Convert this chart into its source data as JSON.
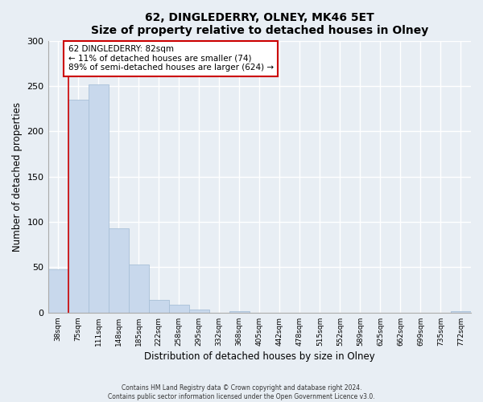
{
  "title": "62, DINGLEDERRY, OLNEY, MK46 5ET",
  "subtitle": "Size of property relative to detached houses in Olney",
  "xlabel": "Distribution of detached houses by size in Olney",
  "ylabel": "Number of detached properties",
  "bar_labels": [
    "38sqm",
    "75sqm",
    "111sqm",
    "148sqm",
    "185sqm",
    "222sqm",
    "258sqm",
    "295sqm",
    "332sqm",
    "368sqm",
    "405sqm",
    "442sqm",
    "478sqm",
    "515sqm",
    "552sqm",
    "589sqm",
    "625sqm",
    "662sqm",
    "699sqm",
    "735sqm",
    "772sqm"
  ],
  "bar_values": [
    48,
    235,
    252,
    93,
    53,
    14,
    9,
    3,
    0,
    2,
    0,
    0,
    0,
    0,
    0,
    0,
    0,
    0,
    0,
    0,
    2
  ],
  "bar_color": "#c8d8ec",
  "bar_edge_color": "#a8c0d8",
  "ylim": [
    0,
    300
  ],
  "yticks": [
    0,
    50,
    100,
    150,
    200,
    250,
    300
  ],
  "annotation_box_text_line1": "62 DINGLEDERRY: 82sqm",
  "annotation_box_text_line2": "← 11% of detached houses are smaller (74)",
  "annotation_box_text_line3": "89% of semi-detached houses are larger (624) →",
  "annotation_box_facecolor": "#ffffff",
  "annotation_box_edgecolor": "#cc0000",
  "redline_x": 0.5,
  "footer_line1": "Contains HM Land Registry data © Crown copyright and database right 2024.",
  "footer_line2": "Contains public sector information licensed under the Open Government Licence v3.0.",
  "background_color": "#e8eef4",
  "plot_background_color": "#e8eef4",
  "grid_color": "#ffffff"
}
